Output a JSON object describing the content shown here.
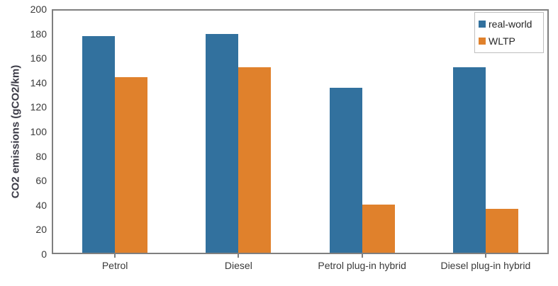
{
  "chart_data": {
    "type": "bar",
    "title": "",
    "ylabel": "CO2 emissions (gCO2/km)",
    "xlabel": "",
    "categories": [
      "Petrol",
      "Diesel",
      "Petrol plug-in hybrid",
      "Diesel plug-in hybrid"
    ],
    "series": [
      {
        "name": "real-world",
        "color": "#32719E",
        "values": [
          179,
          181,
          136,
          153
        ]
      },
      {
        "name": "WLTP",
        "color": "#E0812C",
        "values": [
          145,
          153,
          40,
          36
        ]
      }
    ],
    "unit": "gCO2/km",
    "ylim": [
      0,
      200
    ],
    "yticks": [
      0,
      20,
      40,
      60,
      80,
      100,
      120,
      140,
      160,
      180,
      200
    ],
    "grid": false,
    "legend_position": "top-right",
    "axis_color": "#7f7f7f",
    "text_color": "#3a3a3a",
    "legend_border_color": "#bfbfbf"
  }
}
